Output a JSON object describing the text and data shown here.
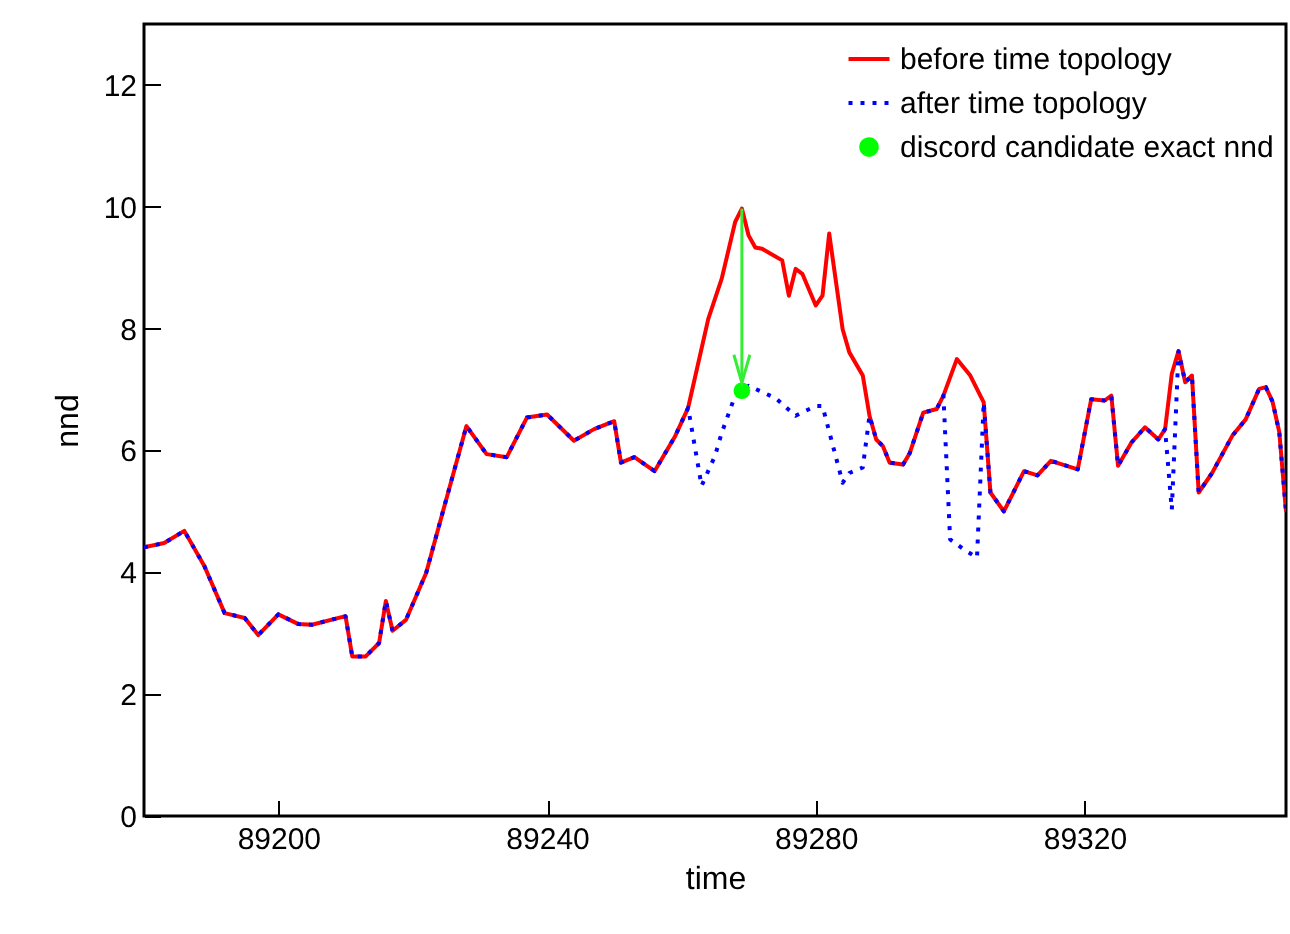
{
  "chart_data": {
    "type": "line",
    "xlabel": "time",
    "ylabel": "nnd",
    "xlim": [
      89180,
      89350
    ],
    "xticks": [
      {
        "value": 89200,
        "label": "89200"
      },
      {
        "value": 89240,
        "label": "89240"
      },
      {
        "value": 89280,
        "label": "89280"
      },
      {
        "value": 89320,
        "label": "89320"
      }
    ],
    "ylim": [
      0,
      13
    ],
    "yticks": [
      0,
      2,
      4,
      6,
      8,
      10,
      12
    ],
    "grid": false,
    "legend": "top right",
    "series": [
      {
        "name": "before time topology",
        "type": "line",
        "color": "#ff0000",
        "line_style": "solid",
        "x": [
          89180,
          89183,
          89186,
          89189,
          89192,
          89195,
          89197,
          89200,
          89203,
          89205,
          89210,
          89211,
          89213,
          89215,
          89216,
          89217,
          89219,
          89222,
          89225,
          89228,
          89231,
          89234,
          89237,
          89240,
          89244,
          89247,
          89250,
          89251,
          89253,
          89256,
          89259,
          89261,
          89264,
          89266,
          89268,
          89269,
          89270,
          89271,
          89272,
          89275,
          89276,
          89277,
          89278,
          89280,
          89281,
          89282,
          89284,
          89285,
          89287,
          89288,
          89289,
          89290,
          89291,
          89293,
          89294,
          89296,
          89298,
          89299,
          89301,
          89303,
          89305,
          89306,
          89308,
          89311,
          89313,
          89315,
          89319,
          89321,
          89323,
          89324,
          89325,
          89327,
          89329,
          89331,
          89332,
          89333,
          89334,
          89335,
          89336,
          89337,
          89339,
          89342,
          89344,
          89346,
          89347,
          89348,
          89349,
          89350
        ],
        "values": [
          4.41,
          4.48,
          4.68,
          4.1,
          3.33,
          3.25,
          2.97,
          3.31,
          3.15,
          3.14,
          3.28,
          2.62,
          2.62,
          2.84,
          3.53,
          3.04,
          3.22,
          3.99,
          5.2,
          6.4,
          5.94,
          5.89,
          6.54,
          6.59,
          6.16,
          6.35,
          6.48,
          5.8,
          5.89,
          5.66,
          6.22,
          6.7,
          8.16,
          8.82,
          9.75,
          9.97,
          9.53,
          9.33,
          9.31,
          9.12,
          8.54,
          8.98,
          8.9,
          8.38,
          8.54,
          9.56,
          7.99,
          7.61,
          7.23,
          6.57,
          6.18,
          6.07,
          5.8,
          5.77,
          5.96,
          6.62,
          6.68,
          6.9,
          7.5,
          7.23,
          6.79,
          5.31,
          5.0,
          5.66,
          5.59,
          5.83,
          5.69,
          6.84,
          6.82,
          6.9,
          5.75,
          6.13,
          6.38,
          6.18,
          6.35,
          7.26,
          7.63,
          7.12,
          7.23,
          5.31,
          5.63,
          6.24,
          6.51,
          7.01,
          7.04,
          6.8,
          6.3,
          5.0
        ]
      },
      {
        "name": "after time topology",
        "type": "line",
        "color": "#0000ff",
        "line_style": "dotted",
        "x": [
          89180,
          89183,
          89186,
          89189,
          89192,
          89195,
          89197,
          89200,
          89203,
          89205,
          89210,
          89211,
          89213,
          89215,
          89216,
          89217,
          89219,
          89222,
          89225,
          89228,
          89231,
          89234,
          89237,
          89240,
          89244,
          89247,
          89250,
          89251,
          89253,
          89256,
          89259,
          89261,
          89263,
          89265,
          89266,
          89268,
          89269,
          89270,
          89274,
          89277,
          89280,
          89281,
          89284,
          89285,
          89287,
          89288,
          89289,
          89290,
          89291,
          89293,
          89294,
          89296,
          89298,
          89299,
          89300,
          89302,
          89304,
          89305,
          89306,
          89308,
          89311,
          89313,
          89315,
          89319,
          89321,
          89323,
          89324,
          89325,
          89327,
          89329,
          89331,
          89332,
          89333,
          89334,
          89335,
          89336,
          89337,
          89339,
          89342,
          89344,
          89346,
          89347,
          89348,
          89349,
          89350
        ],
        "values": [
          4.41,
          4.48,
          4.68,
          4.1,
          3.33,
          3.25,
          2.97,
          3.31,
          3.15,
          3.14,
          3.28,
          2.62,
          2.62,
          2.84,
          3.53,
          3.04,
          3.22,
          3.99,
          5.2,
          6.4,
          5.94,
          5.89,
          6.54,
          6.59,
          6.16,
          6.35,
          6.48,
          5.8,
          5.89,
          5.66,
          6.22,
          6.7,
          5.42,
          5.91,
          6.29,
          6.9,
          6.98,
          7.06,
          6.86,
          6.57,
          6.73,
          6.73,
          5.47,
          5.63,
          5.72,
          6.57,
          6.18,
          6.07,
          5.8,
          5.77,
          5.96,
          6.62,
          6.68,
          6.9,
          4.54,
          4.38,
          4.24,
          6.79,
          5.31,
          5.0,
          5.66,
          5.59,
          5.83,
          5.69,
          6.84,
          6.82,
          6.9,
          5.75,
          6.13,
          6.38,
          6.18,
          6.35,
          5.03,
          7.63,
          7.12,
          7.23,
          5.31,
          5.63,
          6.24,
          6.51,
          7.01,
          7.04,
          6.8,
          6.3,
          5.0
        ]
      },
      {
        "name": "discord candidate exact nnd",
        "type": "scatter",
        "color": "#00ff00",
        "marker": "circle",
        "x": [
          89269
        ],
        "values": [
          6.98
        ]
      }
    ]
  }
}
